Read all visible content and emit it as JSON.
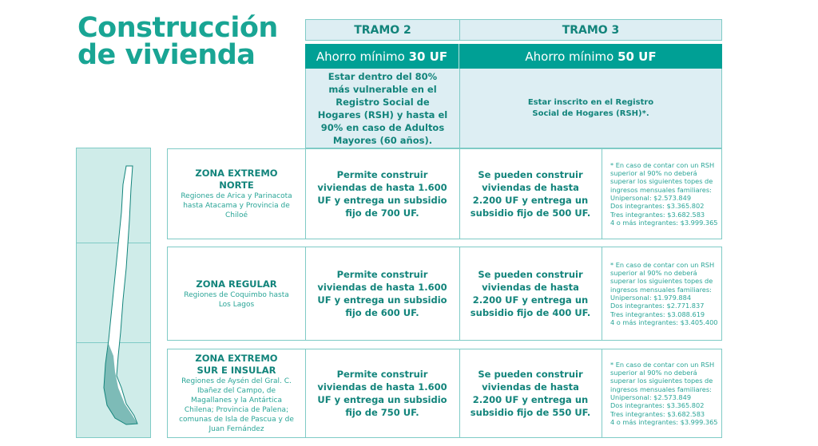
{
  "title": [
    "Construcción",
    "de vivienda"
  ],
  "tramos": [
    {
      "label": "TRAMO 2",
      "ahorro_prefix": "Ahorro mínimo ",
      "ahorro_value": "30 UF",
      "requisito": "Estar dentro del 80% más vulnerable en el Registro Social de Hogares (RSH) y hasta el 90% en caso de Adultos Mayores (60 años)."
    },
    {
      "label": "TRAMO 3",
      "ahorro_prefix": "Ahorro mínimo ",
      "ahorro_value": "50 UF",
      "requisito": "Estar inscrito en el Registro Social de Hogares (RSH)*."
    }
  ],
  "zonas": [
    {
      "name": "ZONA EXTREMO NORTE",
      "detail": "Regiones de Arica y Parinacota hasta Atacama y Provincia de Chiloé",
      "tramo2": "Permite construir viviendas de hasta 1.600 UF y entrega un subsidio fijo de 700 UF.",
      "tramo3": "Se pueden construir viviendas de hasta 2.200 UF y entrega un subsidio fijo de 500 UF.",
      "note": [
        "* En caso de contar con un RSH superior al 90% no deberá superar los siguientes topes de ingresos mensuales familiares:",
        "Unipersonal: $2.573.849",
        "Dos integrantes: $3.365.802",
        "Tres integrantes: $3.682.583",
        "4 o más integrantes: $3.999.365"
      ]
    },
    {
      "name": "ZONA REGULAR",
      "detail": "Regiones de Coquimbo hasta Los Lagos",
      "tramo2": "Permite construir viviendas de hasta 1.600 UF y entrega un subsidio fijo de 600 UF.",
      "tramo3": "Se pueden construir viviendas de hasta 2.200 UF y entrega un subsidio fijo de 400 UF.",
      "note": [
        "* En caso de contar con un RSH superior al 90% no deberá superar los siguientes topes de ingresos mensuales familiares:",
        "Unipersonal: $1.979.884",
        "Dos integrantes: $2.771.837",
        "Tres integrantes: $3.088.619",
        "4 o más integrantes: $3.405.400"
      ]
    },
    {
      "name": "ZONA EXTREMO SUR E INSULAR",
      "detail": "Regiones de Aysén del Gral. C. Ibañez del Campo, de Magallanes y la Antártica Chilena; Provincia de Palena; comunas de Isla de Pascua y de Juan Fernández",
      "tramo2": "Permite construir viviendas de hasta 1.600 UF y entrega un subsidio fijo de 750 UF.",
      "tramo3": "Se pueden construir viviendas de hasta 2.200 UF y entrega un subsidio fijo de 550 UF.",
      "note": [
        "* En caso de contar con un RSH superior al 90% no deberá superar los siguientes topes de ingresos mensuales familiares:",
        "Unipersonal: $2.573.849",
        "Dos integrantes: $3.365.802",
        "Tres integrantes: $3.682.583",
        "4 o más integrantes: $3.999.365"
      ]
    }
  ],
  "colors": {
    "accent": "#00a095",
    "light": "#ddeef3",
    "text": "#12847b"
  },
  "map_icon": "chile-map-icon"
}
